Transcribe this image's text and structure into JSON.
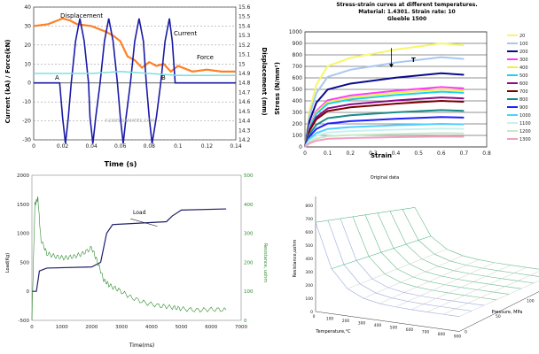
{
  "chart_data": [
    {
      "type": "line",
      "title": "",
      "xlabel": "Time (s)",
      "ylabel_left": "Current (kA) / Force(kN)",
      "ylabel_right": "Displacement (mm)",
      "xlim": [
        0,
        0.14
      ],
      "ylim_left": [
        -30,
        40
      ],
      "ylim_right": [
        14.2,
        15.6
      ],
      "x_ticks": [
        "0",
        "0.02",
        "0.04",
        "0.06",
        "0.08",
        "0.1",
        "0.12",
        "0.14"
      ],
      "y_ticks_left": [
        "-30",
        "-20",
        "-10",
        "0",
        "10",
        "20",
        "30",
        "40"
      ],
      "y_ticks_right": [
        "14.2",
        "14.3",
        "14.4",
        "14.5",
        "14.6",
        "14.7",
        "14.8",
        "14.9",
        "15",
        "15.1",
        "15.2",
        "15.3",
        "15.4",
        "15.5",
        "15.6"
      ],
      "annotations": [
        "Displacement",
        "Current",
        "Force",
        "A",
        "B"
      ],
      "watermark": "©2005 DAMATEC.COM",
      "series": [
        {
          "name": "Displacement",
          "color": "#ff7f27",
          "x": [
            0,
            0.01,
            0.02,
            0.025,
            0.03,
            0.04,
            0.05,
            0.055,
            0.06,
            0.065,
            0.07,
            0.075,
            0.08,
            0.085,
            0.09,
            0.095,
            0.1,
            0.11,
            0.12,
            0.13,
            0.14
          ],
          "y": [
            30,
            31,
            34,
            33,
            31,
            30,
            27,
            25,
            22,
            14,
            12,
            8,
            11,
            9,
            10,
            6,
            9,
            6,
            7,
            6,
            6
          ]
        },
        {
          "name": "Current",
          "color": "#1a1aa6",
          "x": [
            0,
            0.018,
            0.02,
            0.022,
            0.024,
            0.026,
            0.029,
            0.032,
            0.035,
            0.038,
            0.039,
            0.041,
            0.043,
            0.046,
            0.049,
            0.052,
            0.055,
            0.058,
            0.06,
            0.062,
            0.064,
            0.067,
            0.07,
            0.073,
            0.076,
            0.078,
            0.08,
            0.082,
            0.085,
            0.088,
            0.091,
            0.094,
            0.096,
            0.098,
            0.1,
            0.14
          ],
          "y": [
            0,
            0,
            -18,
            -32,
            -18,
            0,
            22,
            34,
            22,
            0,
            -18,
            -32,
            -18,
            0,
            22,
            34,
            22,
            0,
            -18,
            -32,
            -18,
            0,
            22,
            34,
            22,
            0,
            -18,
            -32,
            -18,
            0,
            22,
            34,
            22,
            0,
            0,
            0
          ]
        },
        {
          "name": "Force",
          "color": "#7fe0e0",
          "x": [
            0,
            0.02,
            0.04,
            0.06,
            0.08,
            0.1,
            0.12,
            0.14
          ],
          "y": [
            5,
            5,
            5,
            6,
            5,
            4,
            4,
            4
          ]
        }
      ]
    },
    {
      "type": "line",
      "title": "Stress-strain curves at different temperatures.",
      "subtitle1": "Material: 1.4301. Strain rate: 10",
      "subtitle2": "Gleeble 1500",
      "xlabel": "Strain",
      "ylabel": "Stress (N/mm²)",
      "xlim": [
        0,
        0.8
      ],
      "ylim": [
        0,
        1000
      ],
      "x_ticks": [
        "0",
        "0.1",
        "0.2",
        "0.3",
        "0.4",
        "0.5",
        "0.6",
        "0.7",
        "0.8"
      ],
      "y_ticks": [
        "0",
        "100",
        "200",
        "300",
        "400",
        "500",
        "600",
        "700",
        "800",
        "900",
        "1000"
      ],
      "annotation": "T",
      "legend": [
        "20",
        "100",
        "200",
        "300",
        "400",
        "500",
        "600",
        "700",
        "800",
        "900",
        "1000",
        "1100",
        "1200",
        "1300"
      ],
      "series": [
        {
          "name": "20",
          "color": "#f6f66a",
          "level": 900
        },
        {
          "name": "100",
          "color": "#a8c8f0",
          "level": 780
        },
        {
          "name": "200",
          "color": "#0a0a8c",
          "level": 640
        },
        {
          "name": "300",
          "color": "#ff3cff",
          "level": 520
        },
        {
          "name": "400",
          "color": "#f0f040",
          "level": 500
        },
        {
          "name": "500",
          "color": "#20d0f0",
          "level": 480
        },
        {
          "name": "600",
          "color": "#8a0a8a",
          "level": 430
        },
        {
          "name": "700",
          "color": "#7a0000",
          "level": 400
        },
        {
          "name": "800",
          "color": "#1a8a8a",
          "level": 320
        },
        {
          "name": "900",
          "color": "#2020ff",
          "level": 260
        },
        {
          "name": "1000",
          "color": "#50d0ff",
          "level": 200
        },
        {
          "name": "1100",
          "color": "#c8f0f0",
          "level": 160
        },
        {
          "name": "1200",
          "color": "#c8e8c8",
          "level": 120
        },
        {
          "name": "1300",
          "color": "#f0a0c0",
          "level": 90
        }
      ]
    },
    {
      "type": "line",
      "title": "",
      "xlabel": "Time(ms)",
      "ylabel_left": "Load(Kg)",
      "ylabel_right": "Resistance, uohm",
      "xlim": [
        0,
        7000
      ],
      "ylim_left": [
        -500,
        2000
      ],
      "ylim_right": [
        0,
        500
      ],
      "x_ticks": [
        "0",
        "1000",
        "2000",
        "3000",
        "4000",
        "5000",
        "6000",
        "7000"
      ],
      "y_ticks_left": [
        "-500",
        "0",
        "500",
        "1000",
        "1500",
        "2000"
      ],
      "y_ticks_right": [
        "0",
        "100",
        "200",
        "300",
        "400",
        "500"
      ],
      "annotation": "Load",
      "series": [
        {
          "name": "Load",
          "color": "#20206a",
          "axis": "left",
          "x": [
            0,
            150,
            250,
            500,
            2000,
            2300,
            2500,
            2700,
            4500,
            4700,
            5000,
            6500
          ],
          "y": [
            0,
            0,
            350,
            400,
            420,
            500,
            1000,
            1150,
            1200,
            1300,
            1400,
            1420
          ]
        },
        {
          "name": "Resistance",
          "color": "#2e8b2e",
          "axis": "right",
          "x": [
            0,
            100,
            200,
            300,
            500,
            800,
            1100,
            1400,
            1700,
            2000,
            2200,
            2400,
            2600,
            2900,
            3300,
            3800,
            4300,
            4700,
            5000,
            5500,
            6000,
            6500
          ],
          "y": [
            0,
            400,
            420,
            280,
            230,
            220,
            215,
            220,
            230,
            250,
            200,
            140,
            120,
            105,
            80,
            60,
            50,
            45,
            40,
            35,
            38,
            36
          ]
        }
      ]
    },
    {
      "type": "surface",
      "title": "Original data",
      "xlabel": "Temperature,°C",
      "ylabel": "Pressure, MPa",
      "zlabel": "Resistance,uohm",
      "x_ticks": [
        "0",
        "100",
        "200",
        "300",
        "400",
        "500",
        "600",
        "700",
        "800",
        "900"
      ],
      "y_ticks": [
        "0",
        "50",
        "100",
        "150"
      ],
      "z_ticks": [
        "0",
        "100",
        "200",
        "300",
        "400",
        "500",
        "600",
        "700",
        "800"
      ]
    }
  ]
}
